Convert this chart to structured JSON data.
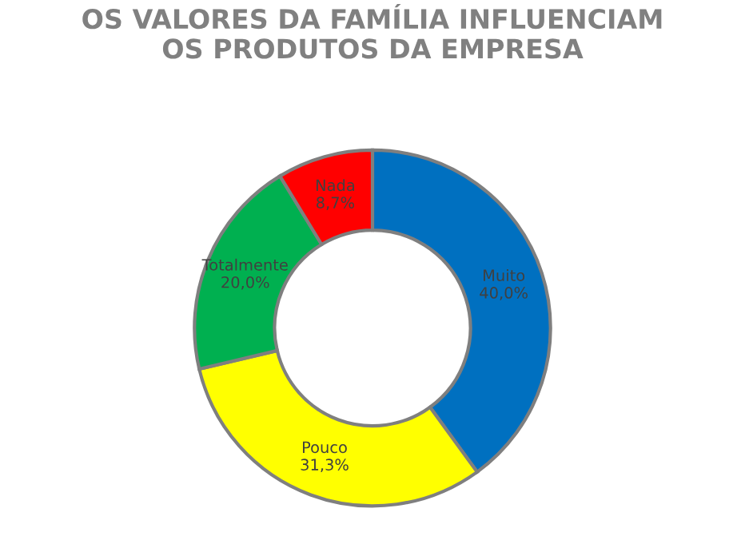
{
  "chart_data": {
    "type": "donut",
    "title": "OS VALORES DA FAMÍLIA INFLUENCIAM\nOS PRODUTOS DA EMPRESA",
    "categories": [
      "Muito",
      "Pouco",
      "Totalmente",
      "Nada"
    ],
    "values": [
      40.0,
      31.3,
      20.0,
      8.7
    ],
    "value_labels": [
      "40,0%",
      "31,3%",
      "20,0%",
      "8,7%"
    ],
    "colors": [
      "#0070c0",
      "#ffff00",
      "#00b050",
      "#ff0000"
    ],
    "legend": false
  }
}
